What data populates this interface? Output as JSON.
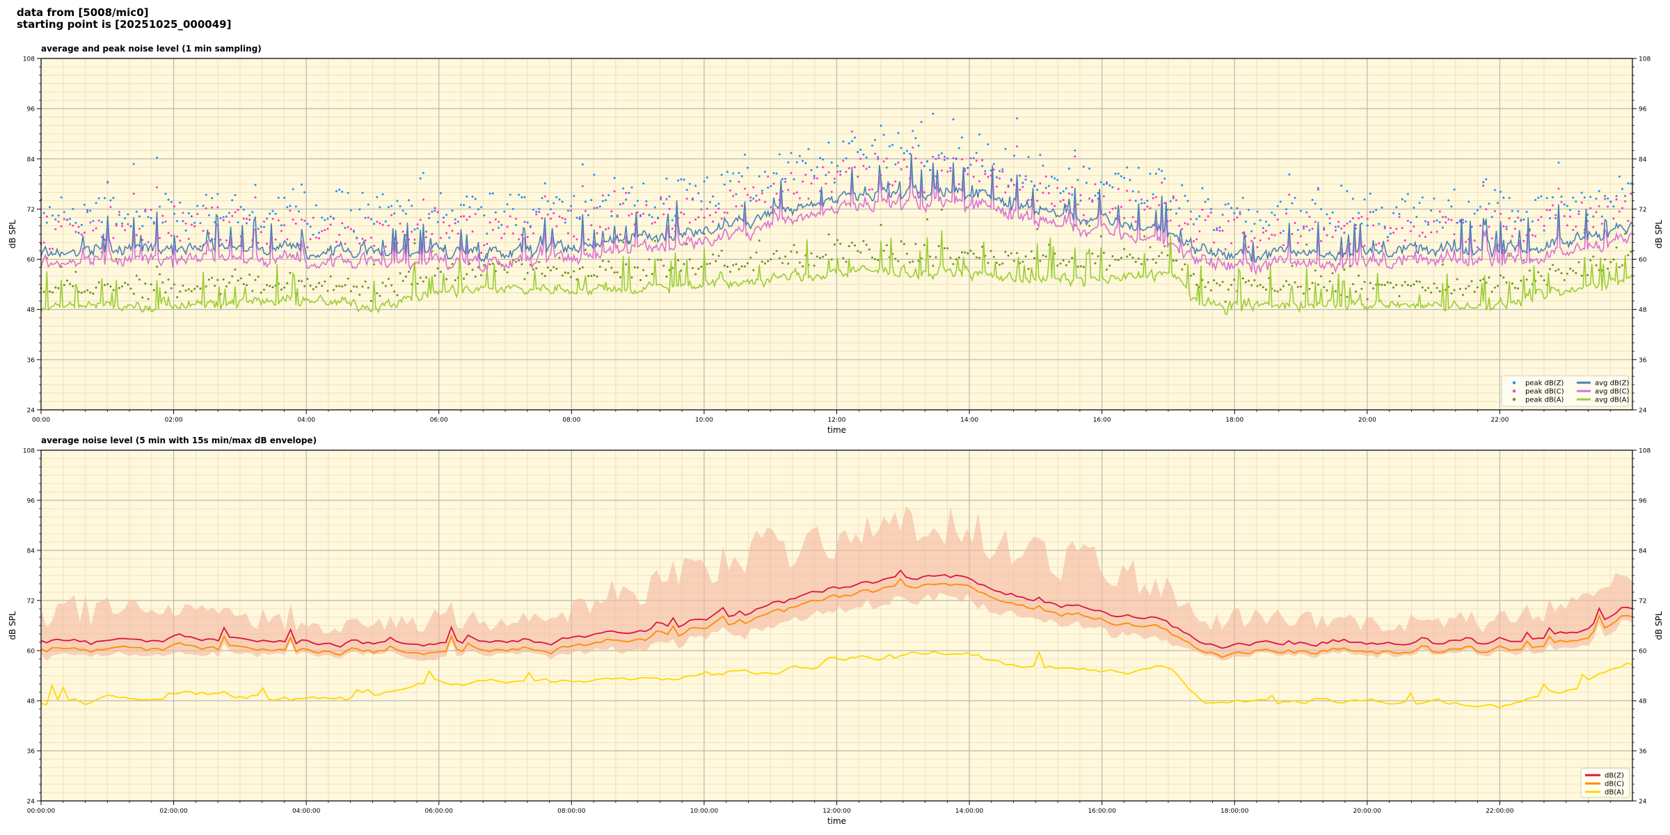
{
  "header": {
    "line1": "data from [5008/mic0]",
    "line2": "starting point is [20251025_000049]"
  },
  "colors": {
    "background": "#fff8dc",
    "peak_z": "#1e90ff",
    "peak_c": "#ff33cc",
    "peak_a": "#6b8e23",
    "avg_z": "#4a7fb5",
    "avg_c": "#da70d6",
    "avg_a": "#9acd32",
    "env_z": "#dc143c",
    "env_c": "#ff8c00",
    "env_a": "#ffd700",
    "envelope_fill": "#f4b8a0"
  },
  "chart_data": [
    {
      "type": "scatter",
      "title": "average and peak noise level (1 min sampling)",
      "xlabel": "time",
      "ylabel": "dB SPL",
      "xlim": [
        0,
        24
      ],
      "ylim": [
        24,
        108
      ],
      "yticks": [
        24,
        36,
        48,
        60,
        72,
        84,
        96,
        108
      ],
      "xtick_labels": [
        "00:00",
        "02:00",
        "04:00",
        "06:00",
        "08:00",
        "10:00",
        "12:00",
        "14:00",
        "16:00",
        "18:00",
        "20:00",
        "22:00"
      ],
      "grid": true,
      "legend_position": "bottom-right",
      "legend": [
        {
          "label": "peak dB(Z)",
          "kind": "marker",
          "color": "#1e90ff"
        },
        {
          "label": "peak dB(C)",
          "kind": "marker",
          "color": "#ff33cc"
        },
        {
          "label": "peak dB(A)",
          "kind": "marker",
          "color": "#6b8e23"
        },
        {
          "label": "avg dB(Z)",
          "kind": "line",
          "color": "#4a7fb5"
        },
        {
          "label": "avg dB(C)",
          "kind": "line",
          "color": "#da70d6"
        },
        {
          "label": "avg dB(A)",
          "kind": "line",
          "color": "#9acd32"
        }
      ],
      "baseline_hours": [
        0,
        1,
        2,
        3,
        4,
        5,
        6,
        7,
        8,
        9,
        10,
        11,
        12,
        13,
        14,
        15,
        16,
        17,
        17.5,
        18,
        19,
        20,
        21,
        22,
        23,
        24
      ],
      "avg_z_baseline": [
        62,
        62,
        63,
        63,
        62,
        62,
        62,
        62,
        63,
        65,
        67,
        71,
        74,
        76,
        76,
        72,
        69,
        67,
        62,
        61,
        62,
        62,
        62,
        62,
        64,
        68
      ],
      "avg_c_offset": -2.5,
      "avg_a_baseline": [
        48,
        49,
        49,
        50,
        50,
        49,
        52,
        53,
        53,
        53,
        54,
        55,
        57,
        57,
        57,
        55,
        55,
        57,
        49,
        49,
        49,
        49,
        49,
        49,
        52,
        56
      ]
    },
    {
      "type": "line",
      "title": "average noise level (5 min with 15s min/max dB envelope)",
      "xlabel": "time",
      "ylabel": "dB SPL",
      "xlim": [
        0,
        24
      ],
      "ylim": [
        24,
        108
      ],
      "yticks": [
        24,
        36,
        48,
        60,
        72,
        84,
        96,
        108
      ],
      "xtick_labels": [
        "00:00:00",
        "02:00:00",
        "04:00:00",
        "06:00:00",
        "08:00:00",
        "10:00:00",
        "12:00:00",
        "14:00:00",
        "16:00:00",
        "18:00:00",
        "20:00:00",
        "22:00:00"
      ],
      "grid": true,
      "legend_position": "bottom-right",
      "legend": [
        {
          "label": "dB(Z)",
          "kind": "line",
          "color": "#dc143c"
        },
        {
          "label": "dB(C)",
          "kind": "line",
          "color": "#ff8c00"
        },
        {
          "label": "dB(A)",
          "kind": "line",
          "color": "#ffd700"
        }
      ],
      "baseline_hours": [
        0,
        1,
        2,
        3,
        4,
        5,
        6,
        7,
        8,
        9,
        10,
        11,
        12,
        13,
        14,
        15,
        16,
        17,
        17.5,
        18,
        19,
        20,
        21,
        22,
        23,
        24
      ],
      "z_baseline": [
        62,
        62,
        63,
        63,
        62,
        62,
        62,
        62,
        63,
        65,
        67,
        71,
        75,
        78,
        77,
        72,
        69,
        67,
        62,
        61,
        62,
        62,
        62,
        62,
        64,
        70
      ],
      "c_offset": -2,
      "a_baseline": [
        48,
        48,
        49,
        49,
        49,
        49,
        53,
        52,
        53,
        53,
        54,
        55,
        58,
        59,
        59,
        56,
        55,
        56,
        48,
        48,
        48,
        48,
        48,
        47,
        51,
        57
      ],
      "envelope_max_extra": [
        6,
        9,
        7,
        6,
        4,
        4,
        6,
        4,
        6,
        10,
        12,
        14,
        12,
        12,
        12,
        11,
        11,
        8,
        5,
        6,
        6,
        5,
        5,
        5,
        6,
        7
      ],
      "envelope_min_extra": [
        2,
        2,
        2,
        2,
        1,
        1,
        2,
        1,
        2,
        3,
        3,
        4,
        4,
        4,
        4,
        3,
        3,
        3,
        1,
        1,
        1,
        1,
        1,
        1,
        2,
        2
      ]
    }
  ]
}
